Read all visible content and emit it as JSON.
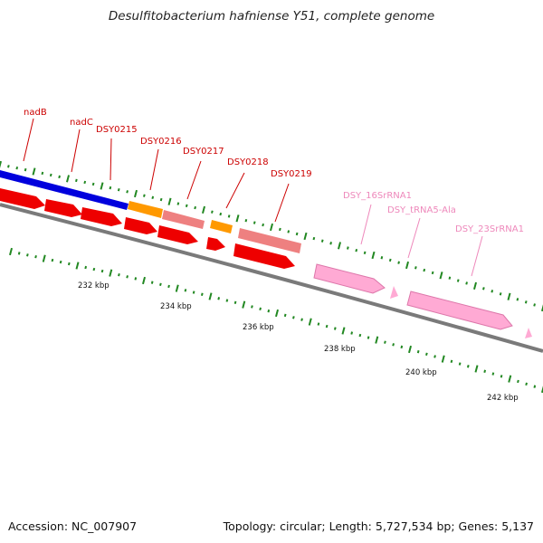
{
  "title": "Desulfitobacterium hafniense Y51, complete genome",
  "footer": {
    "accession": "Accession: NC_007907",
    "summary": "Topology: circular; Length: 5,727,534 bp; Genes: 5,137"
  },
  "colors": {
    "backbone": "#7a7a7a",
    "cds": "#ee0000",
    "blue_feature": "#0000dd",
    "orange_feature": "#ff9900",
    "salmon_feature": "#ee8080",
    "rrna": "#ffaad4",
    "tick": "#228822",
    "cds_label": "#cc0000",
    "rrna_label": "#ee88bb"
  },
  "gene_labels": [
    {
      "text": "nadB",
      "kind": "cds"
    },
    {
      "text": "nadC",
      "kind": "cds"
    },
    {
      "text": "DSY0215",
      "kind": "cds"
    },
    {
      "text": "DSY0216",
      "kind": "cds"
    },
    {
      "text": "DSY0217",
      "kind": "cds"
    },
    {
      "text": "DSY0218",
      "kind": "cds"
    },
    {
      "text": "DSY0219",
      "kind": "cds"
    },
    {
      "text": "DSY_16SrRNA1",
      "kind": "rrna"
    },
    {
      "text": "DSY_tRNA5-Ala",
      "kind": "rrna"
    },
    {
      "text": "DSY_23SrRNA1",
      "kind": "rrna"
    }
  ],
  "scale_labels": [
    "232 kbp",
    "234 kbp",
    "236 kbp",
    "238 kbp",
    "240 kbp",
    "242 kbp"
  ]
}
